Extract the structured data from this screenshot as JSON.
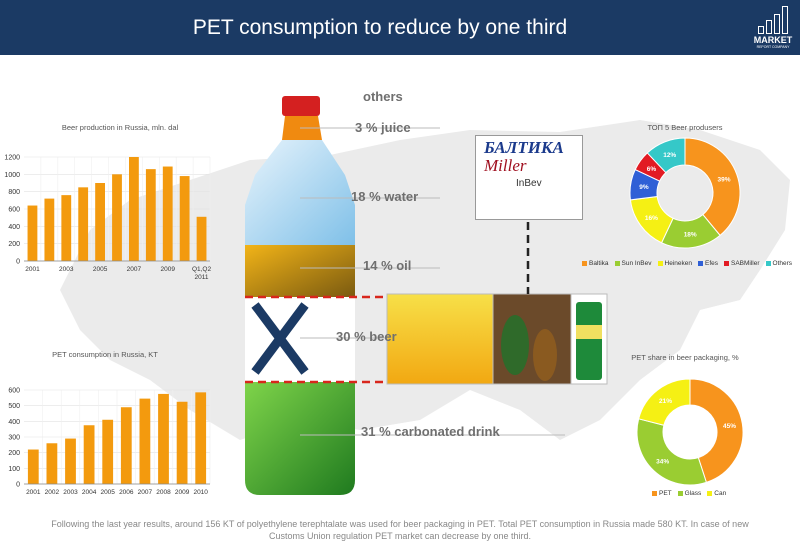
{
  "header": {
    "title": "PET consumption to reduce by one third",
    "logo_word": "MARKET",
    "logo_sub": "REPORT COMPANY"
  },
  "caption": {
    "line1": "Following the last year results, around 156 KT of polyethylene terephtalate was used for beer packaging in PET. Total PET consumption in Russia made 580 KT. In case of new",
    "line2": "Customs Union regulation PET market can decrease by one third."
  },
  "bottle_segments": [
    {
      "label": "others"
    },
    {
      "label": "3 % juice"
    },
    {
      "label": "18 % water"
    },
    {
      "label": "14 % oil"
    },
    {
      "label": "30 % beer"
    },
    {
      "label": "31 % carbonated drink"
    }
  ],
  "brands": {
    "b1": "БАЛТИКА",
    "b2": "Miller",
    "b3": "InBev"
  },
  "colors": {
    "bar": "#f39a0e",
    "header": "#1b3a64",
    "dash": "#d8261c",
    "cross": "#1b3a64"
  },
  "chart_data": [
    {
      "type": "bar",
      "title": "Beer production in Russia, mln. dal",
      "categories": [
        "2001",
        "2002",
        "2003",
        "2004",
        "2005",
        "2006",
        "2007",
        "2008",
        "2009",
        "2010",
        "Q1,Q2 2011"
      ],
      "tick_labels": [
        "2001",
        "2003",
        "2005",
        "2007",
        "2009",
        "Q1,Q2 2011"
      ],
      "values": [
        640,
        720,
        760,
        850,
        900,
        1000,
        1200,
        1060,
        1090,
        980,
        510
      ],
      "yticks": [
        0,
        200,
        400,
        600,
        800,
        1000,
        1200
      ],
      "ylim": [
        0,
        1200
      ],
      "xlabel": "",
      "ylabel": ""
    },
    {
      "type": "bar",
      "title": "PET consumption in Russia, KT",
      "categories": [
        "2001",
        "2002",
        "2003",
        "2004",
        "2005",
        "2006",
        "2007",
        "2008",
        "2009",
        "2010"
      ],
      "values": [
        220,
        260,
        290,
        375,
        410,
        490,
        545,
        575,
        525,
        585
      ],
      "yticks": [
        0,
        100,
        200,
        300,
        400,
        500,
        600
      ],
      "ylim": [
        0,
        600
      ],
      "xlabel": "",
      "ylabel": ""
    },
    {
      "type": "pie",
      "title": "ТОП 5 Beer produsers",
      "labels": [
        "Baltika",
        "Sun InBev",
        "Heineken",
        "Efes",
        "SABMiller",
        "Others"
      ],
      "values": [
        39,
        18,
        16,
        9,
        6,
        12
      ],
      "data_labels": [
        "39%",
        "18%",
        "16%",
        "9%",
        "6%",
        "12%"
      ],
      "colors": [
        "#f7941d",
        "#9acd32",
        "#f5f014",
        "#2f5fd6",
        "#e21b23",
        "#35c8c8"
      ]
    },
    {
      "type": "pie",
      "title": "PET share in beer packaging, %",
      "labels": [
        "PET",
        "Glass",
        "Can"
      ],
      "values": [
        45,
        34,
        21
      ],
      "data_labels": [
        "45%",
        "34%",
        "21%"
      ],
      "colors": [
        "#f7941d",
        "#9acd32",
        "#f5f014"
      ]
    }
  ]
}
